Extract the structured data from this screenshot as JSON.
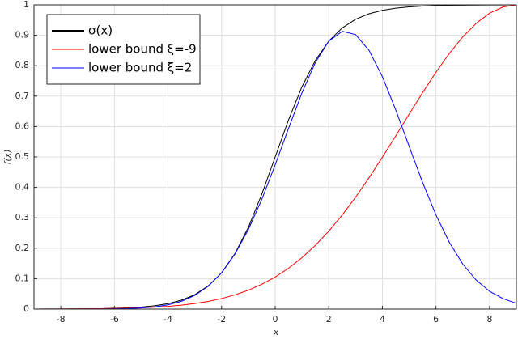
{
  "chart_data": {
    "type": "line",
    "xlabel": "x",
    "ylabel": "f(x)",
    "x": [
      -9,
      -8.5,
      -8,
      -7.5,
      -7,
      -6.5,
      -6,
      -5.5,
      -5,
      -4.5,
      -4,
      -3.5,
      -3,
      -2.5,
      -2,
      -1.5,
      -1,
      -0.5,
      0,
      0.5,
      1,
      1.5,
      2,
      2.5,
      3,
      3.5,
      4,
      4.5,
      5,
      5.5,
      6,
      6.5,
      7,
      7.5,
      8,
      8.5,
      9
    ],
    "series": [
      {
        "name": "σ(x)",
        "color": "#000000",
        "values": [
          0.0001,
          0.0002,
          0.0003,
          0.0006,
          0.0009,
          0.0015,
          0.0025,
          0.0041,
          0.0067,
          0.011,
          0.018,
          0.0293,
          0.0474,
          0.0759,
          0.1192,
          0.1824,
          0.2689,
          0.3775,
          0.5,
          0.6225,
          0.7311,
          0.8176,
          0.8808,
          0.9241,
          0.9526,
          0.9707,
          0.982,
          0.989,
          0.9933,
          0.9959,
          0.9975,
          0.9985,
          0.9991,
          0.9994,
          0.9997,
          0.9998,
          0.9999
        ]
      },
      {
        "name": "lower bound ξ=-9",
        "color": "#ff0000",
        "values": [
          0.0001,
          0.0002,
          0.0003,
          0.0005,
          0.0008,
          0.0013,
          0.0019,
          0.0029,
          0.0043,
          0.0063,
          0.0091,
          0.013,
          0.0183,
          0.0254,
          0.0347,
          0.0467,
          0.0621,
          0.0815,
          0.1053,
          0.1343,
          0.169,
          0.2095,
          0.2562,
          0.3091,
          0.3677,
          0.4314,
          0.4991,
          0.5695,
          0.6409,
          0.7113,
          0.7786,
          0.8404,
          0.8947,
          0.9392,
          0.9725,
          0.993,
          1.0
        ]
      },
      {
        "name": "lower bound ξ=2",
        "color": "#0000ff",
        "values": [
          0.0,
          0.0,
          0.0,
          0.0001,
          0.0001,
          0.0003,
          0.0008,
          0.0017,
          0.0036,
          0.0073,
          0.014,
          0.0257,
          0.0449,
          0.075,
          0.1192,
          0.1809,
          0.2616,
          0.3606,
          0.4743,
          0.5945,
          0.7111,
          0.8106,
          0.8808,
          0.9131,
          0.9022,
          0.8505,
          0.7642,
          0.6544,
          0.5347,
          0.4165,
          0.3094,
          0.2192,
          0.1479,
          0.0953,
          0.0585,
          0.0343,
          0.0191
        ]
      }
    ],
    "xlim": [
      -9,
      9
    ],
    "ylim": [
      0,
      1
    ],
    "xticks": [
      -8,
      -6,
      -4,
      -2,
      0,
      2,
      4,
      6,
      8
    ],
    "yticks": [
      0,
      0.1,
      0.2,
      0.3,
      0.4,
      0.5,
      0.6,
      0.7,
      0.8,
      0.9,
      1
    ],
    "grid": true,
    "legend": "upper left"
  }
}
